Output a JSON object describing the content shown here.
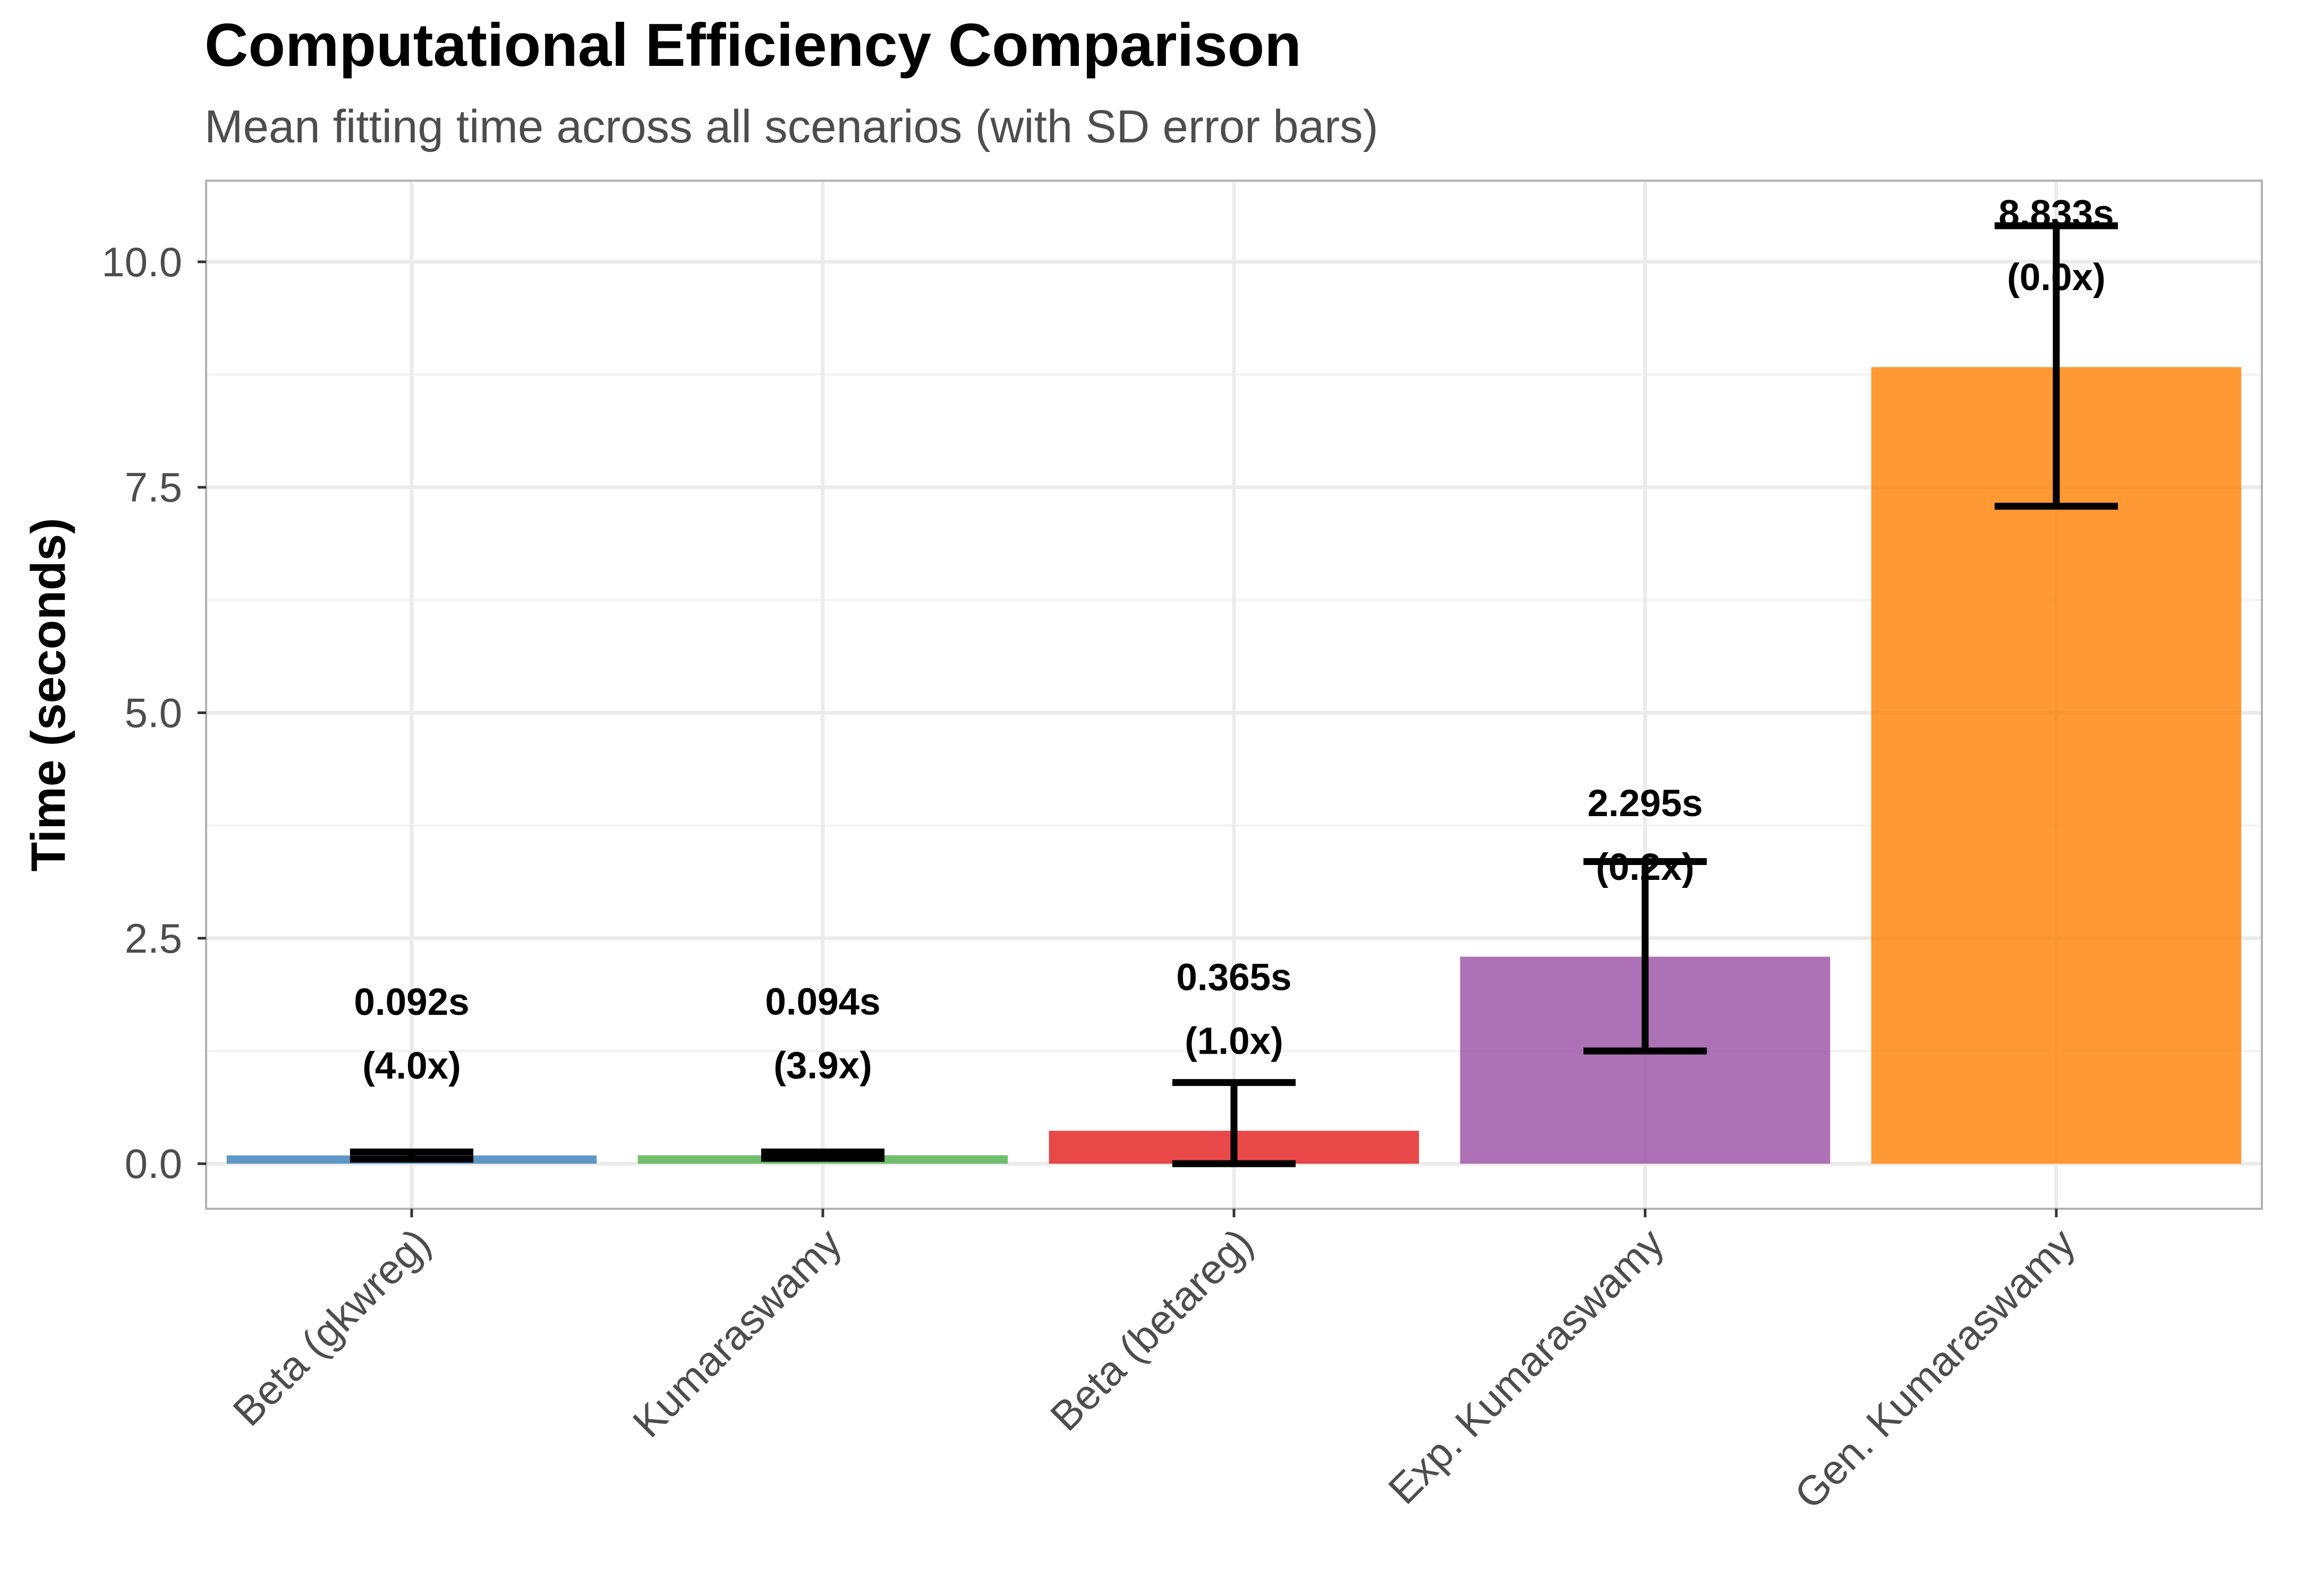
{
  "chart_data": {
    "type": "bar",
    "title": "Computational Efficiency Comparison",
    "subtitle": "Mean fitting time across all scenarios (with SD error bars)",
    "xlabel": "",
    "ylabel": "Time (seconds)",
    "ylim": [
      -0.5,
      10.9
    ],
    "yticks": [
      0,
      2.5,
      5,
      7.5,
      10
    ],
    "ytick_labels": [
      "0.0",
      "2.5",
      "5.0",
      "7.5",
      "10.0"
    ],
    "grid": true,
    "legend": "none",
    "categories": [
      "Beta (gkwreg)",
      "Kumaraswamy",
      "Beta (betareg)",
      "Exp. Kumaraswamy",
      "Gen. Kumaraswamy"
    ],
    "values": [
      0.092,
      0.094,
      0.365,
      2.295,
      8.833
    ],
    "error_low": [
      0.05,
      0.06,
      0.0,
      1.25,
      7.29
    ],
    "error_high": [
      0.13,
      0.13,
      0.9,
      3.35,
      10.4
    ],
    "value_labels": [
      "0.092s",
      "0.094s",
      "0.365s",
      "2.295s",
      "8.833s"
    ],
    "ratio_labels": [
      "(4.0x)",
      "(3.9x)",
      "(1.0x)",
      "(0.2x)",
      "(0.0x)"
    ],
    "colors": [
      "#377eb8",
      "#4daf4a",
      "#e41a1c",
      "#984ea3",
      "#ff7f00"
    ]
  }
}
